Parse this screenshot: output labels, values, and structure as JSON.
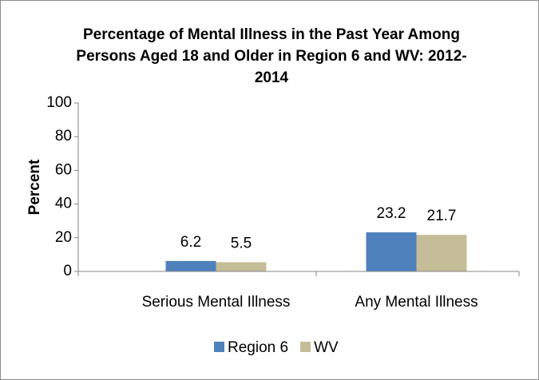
{
  "chart_data": {
    "type": "bar",
    "title": "Percentage of Mental Illness in the Past Year Among Persons Aged 18 and Older in Region 6 and WV: 2012-2014",
    "y_label": "Percent",
    "categories": [
      "Serious Mental Illness",
      "Any Mental Illness"
    ],
    "series": [
      {
        "name": "Region 6",
        "color": "#4f81bd",
        "values": [
          6.2,
          23.2
        ]
      },
      {
        "name": "WV",
        "color": "#c4bd97",
        "values": [
          5.5,
          21.7
        ]
      }
    ],
    "ylim": [
      0,
      100
    ],
    "yticks": [
      0,
      20,
      40,
      60,
      80,
      100
    ],
    "grid": false,
    "legend": "bottom"
  }
}
